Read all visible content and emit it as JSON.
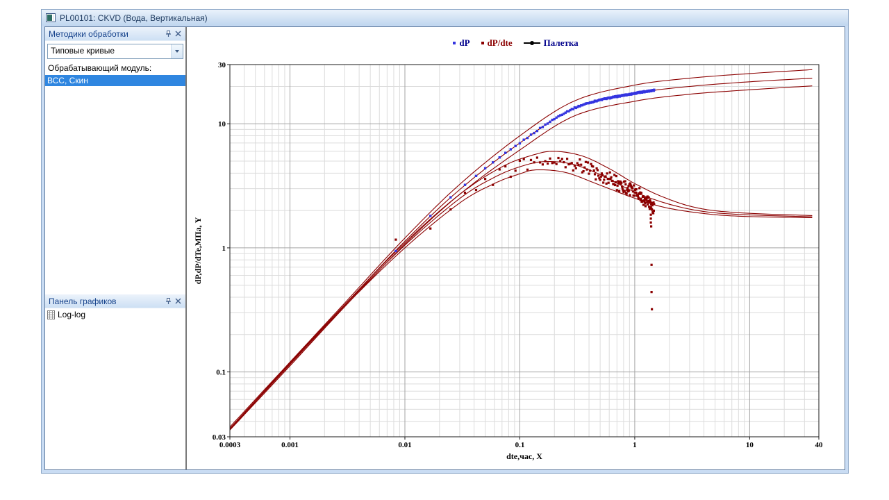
{
  "window": {
    "title": "PL00101: CKVD (Вода, Вертикальная)"
  },
  "sidebar": {
    "panel1": {
      "title": "Методики обработки"
    },
    "panel2": {
      "title": "Панель графиков"
    },
    "method_dropdown": {
      "value": "Типовые кривые"
    },
    "module_label": "Обрабатывающий модуль:",
    "module_items": [
      {
        "label": "ВСС, Скин",
        "selected": true
      }
    ],
    "graph_items": [
      {
        "label": "Log-log"
      }
    ],
    "selection_color": "#2f86e0"
  },
  "chart_data": {
    "type": "scatter",
    "scale": "log-log",
    "xlabel": "dte,час, X",
    "ylabel": "dP,dP/dTe,МПа, Y",
    "xlim": [
      0.0003,
      40
    ],
    "ylim": [
      0.03,
      30
    ],
    "x_ticks": [
      "0.0003",
      "0.001",
      "0.01",
      "0.1",
      "1",
      "10",
      "40"
    ],
    "y_ticks": [
      "0.03",
      "0.1",
      "1",
      "10",
      "30"
    ],
    "grid": {
      "major_color": "#a3a3a3",
      "minor_color": "#dcdcdc",
      "frame_color": "#1a1a1a"
    },
    "legend": [
      {
        "label": "dP",
        "text_color": "#00008b",
        "marker_color": "#3434e0",
        "type": "point"
      },
      {
        "label": "dP/dte",
        "text_color": "#8b0000",
        "marker_color": "#8b0000",
        "type": "point"
      },
      {
        "label": "Палетка",
        "text_color": "#00008b",
        "marker_color": "#000000",
        "type": "line-marker"
      }
    ],
    "palette": {
      "name": "Палетка",
      "color": "#8b0000",
      "pressure_curves": [
        [
          [
            0.0003,
            0.036
          ],
          [
            0.001,
            0.12
          ],
          [
            0.003,
            0.36
          ],
          [
            0.01,
            1.2
          ],
          [
            0.03,
            3.25
          ],
          [
            0.1,
            8.0
          ],
          [
            0.3,
            15.3
          ],
          [
            1,
            20.5
          ],
          [
            3,
            23.3
          ],
          [
            10,
            25.4
          ],
          [
            35,
            27.3
          ]
        ],
        [
          [
            0.0003,
            0.035
          ],
          [
            0.001,
            0.116
          ],
          [
            0.003,
            0.348
          ],
          [
            0.01,
            1.13
          ],
          [
            0.03,
            2.95
          ],
          [
            0.1,
            7.0
          ],
          [
            0.3,
            13.4
          ],
          [
            1,
            17.6
          ],
          [
            3,
            20.0
          ],
          [
            10,
            21.8
          ],
          [
            35,
            23.3
          ]
        ],
        [
          [
            0.0003,
            0.034
          ],
          [
            0.001,
            0.112
          ],
          [
            0.003,
            0.336
          ],
          [
            0.01,
            1.07
          ],
          [
            0.03,
            2.7
          ],
          [
            0.1,
            6.15
          ],
          [
            0.3,
            11.6
          ],
          [
            1,
            15.2
          ],
          [
            3,
            17.3
          ],
          [
            10,
            18.8
          ],
          [
            35,
            20.2
          ]
        ]
      ],
      "derivative_curves": [
        [
          [
            0.0003,
            0.035
          ],
          [
            0.001,
            0.118
          ],
          [
            0.003,
            0.35
          ],
          [
            0.01,
            1.1
          ],
          [
            0.03,
            2.7
          ],
          [
            0.07,
            4.5
          ],
          [
            0.13,
            5.6
          ],
          [
            0.2,
            6.0
          ],
          [
            0.35,
            5.5
          ],
          [
            0.6,
            4.35
          ],
          [
            1,
            3.3
          ],
          [
            1.8,
            2.55
          ],
          [
            3.5,
            2.1
          ],
          [
            8,
            1.92
          ],
          [
            35,
            1.82
          ]
        ],
        [
          [
            0.0003,
            0.0347
          ],
          [
            0.001,
            0.115
          ],
          [
            0.003,
            0.345
          ],
          [
            0.01,
            1.05
          ],
          [
            0.03,
            2.5
          ],
          [
            0.06,
            3.7
          ],
          [
            0.1,
            4.5
          ],
          [
            0.16,
            4.95
          ],
          [
            0.28,
            4.75
          ],
          [
            0.5,
            3.9
          ],
          [
            0.9,
            2.95
          ],
          [
            1.7,
            2.35
          ],
          [
            3.5,
            2.0
          ],
          [
            8,
            1.86
          ],
          [
            35,
            1.78
          ]
        ],
        [
          [
            0.0003,
            0.0342
          ],
          [
            0.001,
            0.112
          ],
          [
            0.003,
            0.338
          ],
          [
            0.01,
            1.0
          ],
          [
            0.03,
            2.3
          ],
          [
            0.06,
            3.3
          ],
          [
            0.1,
            3.95
          ],
          [
            0.14,
            4.25
          ],
          [
            0.25,
            4.05
          ],
          [
            0.5,
            3.2
          ],
          [
            0.9,
            2.6
          ],
          [
            1.7,
            2.15
          ],
          [
            3.5,
            1.92
          ],
          [
            8,
            1.8
          ],
          [
            35,
            1.75
          ]
        ]
      ]
    },
    "samples": {
      "t_start": 0.00833,
      "t_step": 0.00833,
      "count": 177
    },
    "dP": {
      "color": "#3434e0",
      "marker": 3.4,
      "noise": 0.02,
      "follows": "pressure middle curve"
    },
    "dPdte": {
      "color": "#8b0000",
      "marker": 3.2,
      "noise": 0.26,
      "follows": "derivative middle curve",
      "tail_drop_start": 1.05,
      "tail_drop_end_factor": 0.84,
      "extra_points": [
        [
          1.38,
          1.85
        ],
        [
          1.38,
          1.72
        ],
        [
          1.38,
          1.6
        ],
        [
          1.39,
          1.49
        ],
        [
          1.4,
          0.73
        ],
        [
          1.4,
          0.44
        ],
        [
          1.41,
          0.32
        ]
      ]
    }
  }
}
